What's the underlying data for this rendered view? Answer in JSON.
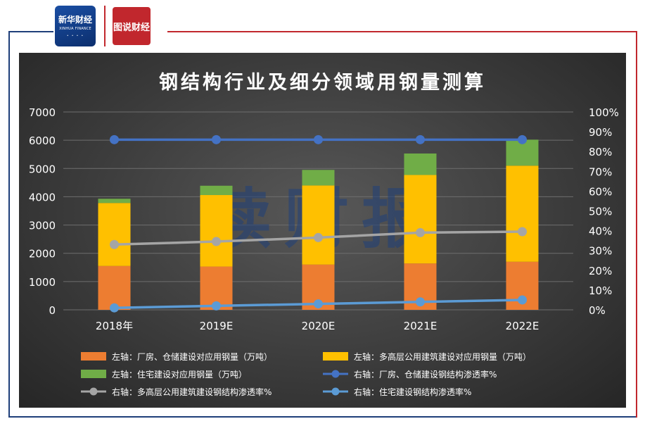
{
  "header": {
    "logo_left_main": "新华财经",
    "logo_left_sub": "XINHUA FINANCE",
    "logo_right_text": "图说财经"
  },
  "colors": {
    "factory": "#ed7d31",
    "multistory": "#ffc000",
    "residential": "#70ad47",
    "factory_rate": "#4472c4",
    "multistory_rate": "#a5a5a5",
    "residential_rate": "#5b9bd5"
  },
  "chart_data": {
    "type": "bar",
    "title": "钢结构行业及细分领域用钢量测算",
    "watermark": "读财报",
    "categories": [
      "2018年",
      "2019E",
      "2020E",
      "2021E",
      "2022E"
    ],
    "y_left": {
      "ticks": [
        "0",
        "1000",
        "2000",
        "3000",
        "4000",
        "5000",
        "6000",
        "7000"
      ],
      "ylim": [
        0,
        7000
      ]
    },
    "y_right": {
      "ticks": [
        "0%",
        "10%",
        "20%",
        "30%",
        "40%",
        "50%",
        "60%",
        "70%",
        "80%",
        "90%",
        "100%"
      ],
      "ylim": [
        0,
        1
      ]
    },
    "grid": true,
    "legend_position": "bottom",
    "stacked_series": [
      {
        "name": "左轴：厂房、仓储建设对应用钢量（万吨）",
        "color_key": "factory",
        "values": [
          1550,
          1530,
          1600,
          1640,
          1700
        ]
      },
      {
        "name": "左轴：多高层公用建筑建设对应用钢量（万吨）",
        "color_key": "multistory",
        "values": [
          2230,
          2530,
          2800,
          3130,
          3400
        ]
      },
      {
        "name": "左轴：住宅建设对应用钢量（万吨）",
        "color_key": "residential",
        "values": [
          150,
          330,
          550,
          760,
          920
        ]
      }
    ],
    "line_series": [
      {
        "name": "右轴：厂房、仓储建设钢结构渗透率%",
        "color_key": "factory_rate",
        "values": [
          0.86,
          0.86,
          0.86,
          0.86,
          0.86
        ]
      },
      {
        "name": "右轴：多高层公用建筑建设钢结构渗透率%",
        "color_key": "multistory_rate",
        "values": [
          0.33,
          0.345,
          0.365,
          0.39,
          0.395
        ]
      },
      {
        "name": "右轴：住宅建设钢结构渗透率%",
        "color_key": "residential_rate",
        "values": [
          0.01,
          0.02,
          0.03,
          0.04,
          0.05
        ]
      }
    ],
    "legend": [
      {
        "label": "左轴：厂房、仓储建设对应用钢量（万吨）",
        "kind": "bar",
        "color_key": "factory"
      },
      {
        "label": "左轴：多高层公用建筑建设对应用钢量（万吨）",
        "kind": "bar",
        "color_key": "multistory"
      },
      {
        "label": "左轴：住宅建设对应用钢量（万吨）",
        "kind": "bar",
        "color_key": "residential"
      },
      {
        "label": "右轴：厂房、仓储建设钢结构渗透率%",
        "kind": "line",
        "color_key": "factory_rate"
      },
      {
        "label": "右轴：多高层公用建筑建设钢结构渗透率%",
        "kind": "line",
        "color_key": "multistory_rate"
      },
      {
        "label": "右轴：住宅建设钢结构渗透率%",
        "kind": "line",
        "color_key": "residential_rate"
      }
    ]
  }
}
